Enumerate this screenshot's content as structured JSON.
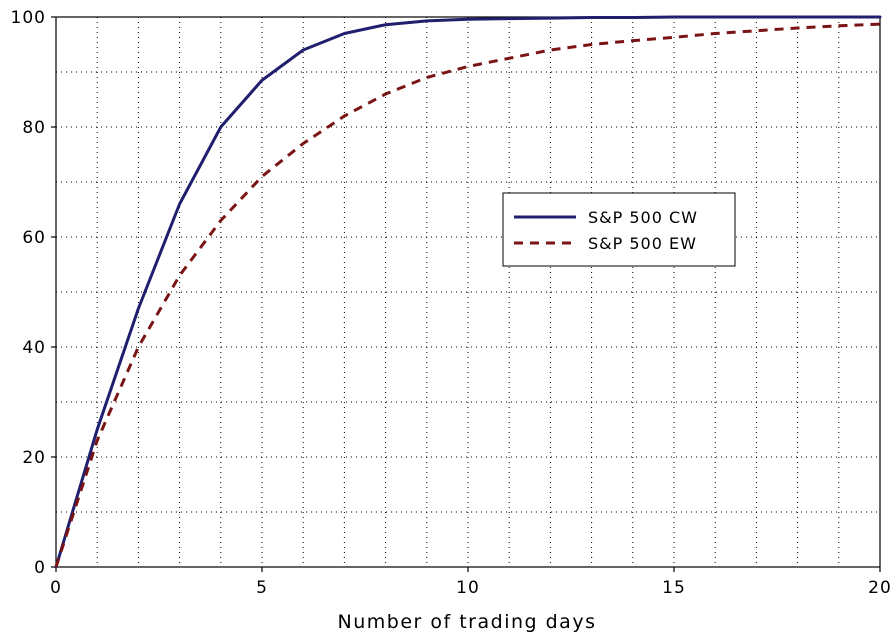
{
  "chart_data": {
    "type": "line",
    "title": "",
    "xlabel": "Number of trading days",
    "ylabel": "",
    "xlim": [
      0,
      20
    ],
    "ylim": [
      0,
      100
    ],
    "x_ticks": [
      "0",
      "5",
      "10",
      "15",
      "20"
    ],
    "y_ticks": [
      "0",
      "20",
      "40",
      "60",
      "80",
      "100"
    ],
    "grid": true,
    "legend_position": "center-right",
    "series": [
      {
        "name": "S&P 500 CW",
        "color": "#1f1f6e",
        "style": "solid",
        "x": [
          0,
          1,
          2,
          3,
          4,
          5,
          6,
          7,
          8,
          9,
          10,
          11,
          12,
          13,
          14,
          15,
          16,
          17,
          18,
          19,
          20
        ],
        "y": [
          0,
          25,
          47,
          66,
          80,
          88.5,
          94,
          97,
          98.6,
          99.3,
          99.6,
          99.7,
          99.8,
          99.9,
          99.9,
          100,
          100,
          100,
          100,
          100,
          100
        ]
      },
      {
        "name": "S&P 500 EW",
        "color": "#7a1414",
        "style": "dashed",
        "x": [
          0,
          1,
          2,
          3,
          4,
          5,
          6,
          7,
          8,
          9,
          10,
          11,
          12,
          13,
          14,
          15,
          16,
          17,
          18,
          19,
          20
        ],
        "y": [
          0,
          23,
          40,
          53,
          63,
          71,
          77,
          82,
          86,
          89,
          91,
          92.5,
          94,
          95,
          95.7,
          96.3,
          97,
          97.5,
          98,
          98.4,
          98.7
        ]
      }
    ]
  }
}
